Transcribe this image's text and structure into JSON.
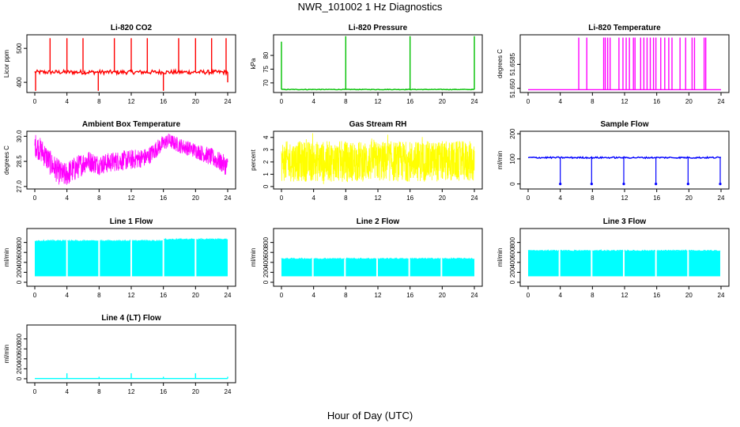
{
  "figure": {
    "title": "NWR_101002  1 Hz Diagnostics",
    "xlabel": "Hour of Day (UTC)"
  },
  "chart_data": [
    {
      "type": "line",
      "title": "Li-820 CO2",
      "ylabel": "Licor ppm",
      "color": "#ff0000",
      "xlim": [
        0,
        24
      ],
      "xticks": [
        0,
        4,
        8,
        12,
        16,
        20,
        24
      ],
      "ylim": [
        370,
        540
      ],
      "yticks": [
        400,
        500
      ],
      "ytick_labels": [
        "400",
        "500"
      ],
      "baseline": 430,
      "noise": 6,
      "spikes": [
        {
          "x": 1.9,
          "y": 530
        },
        {
          "x": 4.0,
          "y": 530
        },
        {
          "x": 6.0,
          "y": 530
        },
        {
          "x": 9.9,
          "y": 530
        },
        {
          "x": 12.0,
          "y": 530
        },
        {
          "x": 14.0,
          "y": 530
        },
        {
          "x": 17.9,
          "y": 530
        },
        {
          "x": 20.0,
          "y": 530
        },
        {
          "x": 22.0,
          "y": 530
        },
        {
          "x": 23.8,
          "y": 530
        },
        {
          "x": 0.1,
          "y": 375
        },
        {
          "x": 7.9,
          "y": 375
        },
        {
          "x": 16.0,
          "y": 375
        },
        {
          "x": 24.0,
          "y": 400
        }
      ]
    },
    {
      "type": "line",
      "title": "Li-820 Pressure",
      "ylabel": "kPa",
      "color": "#00c000",
      "xlim": [
        0,
        24
      ],
      "xticks": [
        0,
        4,
        8,
        12,
        16,
        20,
        24
      ],
      "ylim": [
        66.5,
        87.5
      ],
      "yticks": [
        70,
        75,
        80
      ],
      "ytick_labels": [
        "70",
        "75",
        "80"
      ],
      "baseline": 67.6,
      "noise": 0.12,
      "spikes": [
        {
          "x": 0.0,
          "y": 85
        },
        {
          "x": 8.0,
          "y": 87
        },
        {
          "x": 16.0,
          "y": 87
        },
        {
          "x": 24.0,
          "y": 87
        }
      ]
    },
    {
      "type": "line",
      "title": "Li-820 Temperature",
      "ylabel": "degrees C",
      "color": "#ff00ff",
      "xlim": [
        0,
        24
      ],
      "xticks": [
        0,
        4,
        8,
        12,
        16,
        20,
        24
      ],
      "ylim": [
        51.6485,
        51.669
      ],
      "yticks": [
        51.65,
        51.6585
      ],
      "ytick_labels": [
        "51.650",
        "51.6585"
      ],
      "baseline": 51.6495,
      "noise": 0,
      "spikes": [
        {
          "x": 6.3,
          "y": 51.668
        },
        {
          "x": 7.3,
          "y": 51.668
        },
        {
          "x": 9.4,
          "y": 51.668
        },
        {
          "x": 9.6,
          "y": 51.668
        },
        {
          "x": 9.9,
          "y": 51.668
        },
        {
          "x": 10.2,
          "y": 51.668
        },
        {
          "x": 11.3,
          "y": 51.668
        },
        {
          "x": 11.8,
          "y": 51.668
        },
        {
          "x": 12.2,
          "y": 51.668
        },
        {
          "x": 12.6,
          "y": 51.668
        },
        {
          "x": 13.1,
          "y": 51.668
        },
        {
          "x": 13.3,
          "y": 51.668
        },
        {
          "x": 14.0,
          "y": 51.668
        },
        {
          "x": 14.4,
          "y": 51.668
        },
        {
          "x": 14.8,
          "y": 51.668
        },
        {
          "x": 15.2,
          "y": 51.668
        },
        {
          "x": 15.6,
          "y": 51.668
        },
        {
          "x": 15.9,
          "y": 51.668
        },
        {
          "x": 16.5,
          "y": 51.668
        },
        {
          "x": 17.0,
          "y": 51.668
        },
        {
          "x": 17.5,
          "y": 51.668
        },
        {
          "x": 17.9,
          "y": 51.668
        },
        {
          "x": 18.9,
          "y": 51.668
        },
        {
          "x": 19.6,
          "y": 51.668
        },
        {
          "x": 20.4,
          "y": 51.668
        },
        {
          "x": 20.7,
          "y": 51.668
        },
        {
          "x": 21.9,
          "y": 51.668
        },
        {
          "x": 22.1,
          "y": 51.668
        }
      ]
    },
    {
      "type": "line",
      "title": "Ambient Box Temperature",
      "ylabel": "degrees C",
      "color": "#ff00ff",
      "xlim": [
        0,
        24
      ],
      "xticks": [
        0,
        4,
        8,
        12,
        16,
        20,
        24
      ],
      "ylim": [
        26.85,
        30.3
      ],
      "yticks": [
        27.0,
        28.5,
        30.0
      ],
      "ytick_labels": [
        "27.0",
        "28.5",
        "30.0"
      ],
      "envelope": [
        {
          "x": 0,
          "lo": 28.8,
          "hi": 30.2
        },
        {
          "x": 1,
          "lo": 28.3,
          "hi": 29.8
        },
        {
          "x": 2,
          "lo": 27.6,
          "hi": 29.1
        },
        {
          "x": 3,
          "lo": 27.1,
          "hi": 28.6
        },
        {
          "x": 3.6,
          "lo": 26.9,
          "hi": 28.4
        },
        {
          "x": 5,
          "lo": 27.3,
          "hi": 28.8
        },
        {
          "x": 6.5,
          "lo": 27.9,
          "hi": 29.2
        },
        {
          "x": 8,
          "lo": 27.7,
          "hi": 28.9
        },
        {
          "x": 10,
          "lo": 27.9,
          "hi": 29.1
        },
        {
          "x": 12,
          "lo": 28.0,
          "hi": 29.2
        },
        {
          "x": 14,
          "lo": 28.2,
          "hi": 29.3
        },
        {
          "x": 15.5,
          "lo": 28.9,
          "hi": 29.9
        },
        {
          "x": 16.6,
          "lo": 29.3,
          "hi": 30.2
        },
        {
          "x": 18,
          "lo": 29.0,
          "hi": 29.9
        },
        {
          "x": 20,
          "lo": 28.7,
          "hi": 29.6
        },
        {
          "x": 22,
          "lo": 28.2,
          "hi": 29.3
        },
        {
          "x": 24,
          "lo": 27.6,
          "hi": 28.8
        }
      ]
    },
    {
      "type": "line",
      "title": "Gas Stream RH",
      "ylabel": "percent",
      "color": "#ffff00",
      "xlim": [
        0,
        24
      ],
      "xticks": [
        0,
        4,
        8,
        12,
        16,
        20,
        24
      ],
      "ylim": [
        -0.2,
        4.5
      ],
      "yticks": [
        0,
        1,
        2,
        3,
        4
      ],
      "ytick_labels": [
        "0",
        "1",
        "2",
        "3",
        "4"
      ],
      "band": {
        "lo": 0.4,
        "hi": 3.7,
        "min": 0.1,
        "max": 4.4
      }
    },
    {
      "type": "line",
      "title": "Sample Flow",
      "ylabel": "ml/min",
      "color": "#0000ff",
      "xlim": [
        0,
        24
      ],
      "xticks": [
        0,
        4,
        8,
        12,
        16,
        20,
        24
      ],
      "ylim": [
        -20,
        210
      ],
      "yticks": [
        0,
        100,
        200
      ],
      "ytick_labels": [
        "0",
        "100",
        "200"
      ],
      "baseline": 105,
      "noise": 3,
      "dips": [
        {
          "x": 4.0,
          "y": 0
        },
        {
          "x": 7.9,
          "y": 0
        },
        {
          "x": 11.9,
          "y": 0
        },
        {
          "x": 15.9,
          "y": 0
        },
        {
          "x": 19.9,
          "y": 0
        },
        {
          "x": 23.9,
          "y": 0
        }
      ]
    },
    {
      "type": "line",
      "title": "Line 1 Flow",
      "ylabel": "ml/min",
      "color": "#00ffff",
      "xlim": [
        0,
        24
      ],
      "xticks": [
        0,
        4,
        8,
        12,
        16,
        20,
        24
      ],
      "ylim": [
        -80,
        1080
      ],
      "yticks": [
        0,
        200,
        400,
        600,
        800
      ],
      "ytick_labels": [
        "0",
        "200",
        "400",
        "600",
        "800"
      ],
      "band_segments": [
        {
          "x0": 0.0,
          "x1": 3.9,
          "lo": 120,
          "hi": 830
        },
        {
          "x0": 4.1,
          "x1": 7.9,
          "lo": 120,
          "hi": 830
        },
        {
          "x0": 8.1,
          "x1": 11.9,
          "lo": 120,
          "hi": 830
        },
        {
          "x0": 12.1,
          "x1": 15.9,
          "lo": 120,
          "hi": 830
        },
        {
          "x0": 16.1,
          "x1": 19.9,
          "lo": 120,
          "hi": 860
        },
        {
          "x0": 20.1,
          "x1": 24.0,
          "lo": 120,
          "hi": 860
        }
      ]
    },
    {
      "type": "line",
      "title": "Line 2 Flow",
      "ylabel": "ml/min",
      "color": "#00ffff",
      "xlim": [
        0,
        24
      ],
      "xticks": [
        0,
        4,
        8,
        12,
        16,
        20,
        24
      ],
      "ylim": [
        -80,
        1080
      ],
      "yticks": [
        0,
        200,
        400,
        600,
        800
      ],
      "ytick_labels": [
        "0",
        "200",
        "400",
        "600",
        "800"
      ],
      "band_segments": [
        {
          "x0": 0.0,
          "x1": 3.8,
          "lo": 120,
          "hi": 470
        },
        {
          "x0": 4.0,
          "x1": 7.8,
          "lo": 120,
          "hi": 470
        },
        {
          "x0": 8.0,
          "x1": 11.8,
          "lo": 120,
          "hi": 470
        },
        {
          "x0": 12.0,
          "x1": 15.8,
          "lo": 120,
          "hi": 470
        },
        {
          "x0": 16.0,
          "x1": 19.8,
          "lo": 120,
          "hi": 470
        },
        {
          "x0": 20.0,
          "x1": 24.0,
          "lo": 120,
          "hi": 470
        }
      ]
    },
    {
      "type": "line",
      "title": "Line 3 Flow",
      "ylabel": "ml/min",
      "color": "#00ffff",
      "xlim": [
        0,
        24
      ],
      "xticks": [
        0,
        4,
        8,
        12,
        16,
        20,
        24
      ],
      "ylim": [
        -80,
        1080
      ],
      "yticks": [
        0,
        200,
        400,
        600,
        800
      ],
      "ytick_labels": [
        "0",
        "200",
        "400",
        "600",
        "800"
      ],
      "band_segments": [
        {
          "x0": 0.0,
          "x1": 3.8,
          "lo": 120,
          "hi": 630
        },
        {
          "x0": 4.0,
          "x1": 7.8,
          "lo": 120,
          "hi": 630
        },
        {
          "x0": 8.0,
          "x1": 11.8,
          "lo": 120,
          "hi": 630
        },
        {
          "x0": 12.0,
          "x1": 15.8,
          "lo": 120,
          "hi": 630
        },
        {
          "x0": 16.0,
          "x1": 19.8,
          "lo": 120,
          "hi": 630
        },
        {
          "x0": 20.0,
          "x1": 23.9,
          "lo": 120,
          "hi": 630
        }
      ]
    },
    {
      "type": "line",
      "title": "Line 4 (LT) Flow",
      "ylabel": "ml/min",
      "color": "#00ffff",
      "xlim": [
        0,
        24
      ],
      "xticks": [
        0,
        4,
        8,
        12,
        16,
        20,
        24
      ],
      "ylim": [
        -80,
        1080
      ],
      "yticks": [
        0,
        200,
        400,
        600,
        800
      ],
      "ytick_labels": [
        "0",
        "200",
        "400",
        "600",
        "800"
      ],
      "baseline": 5,
      "noise": 0,
      "spikes": [
        {
          "x": 4.0,
          "y": 110
        },
        {
          "x": 8.0,
          "y": 40
        },
        {
          "x": 12.0,
          "y": 110
        },
        {
          "x": 16.0,
          "y": 40
        },
        {
          "x": 20.0,
          "y": 110
        },
        {
          "x": 24.0,
          "y": 40
        }
      ]
    }
  ]
}
